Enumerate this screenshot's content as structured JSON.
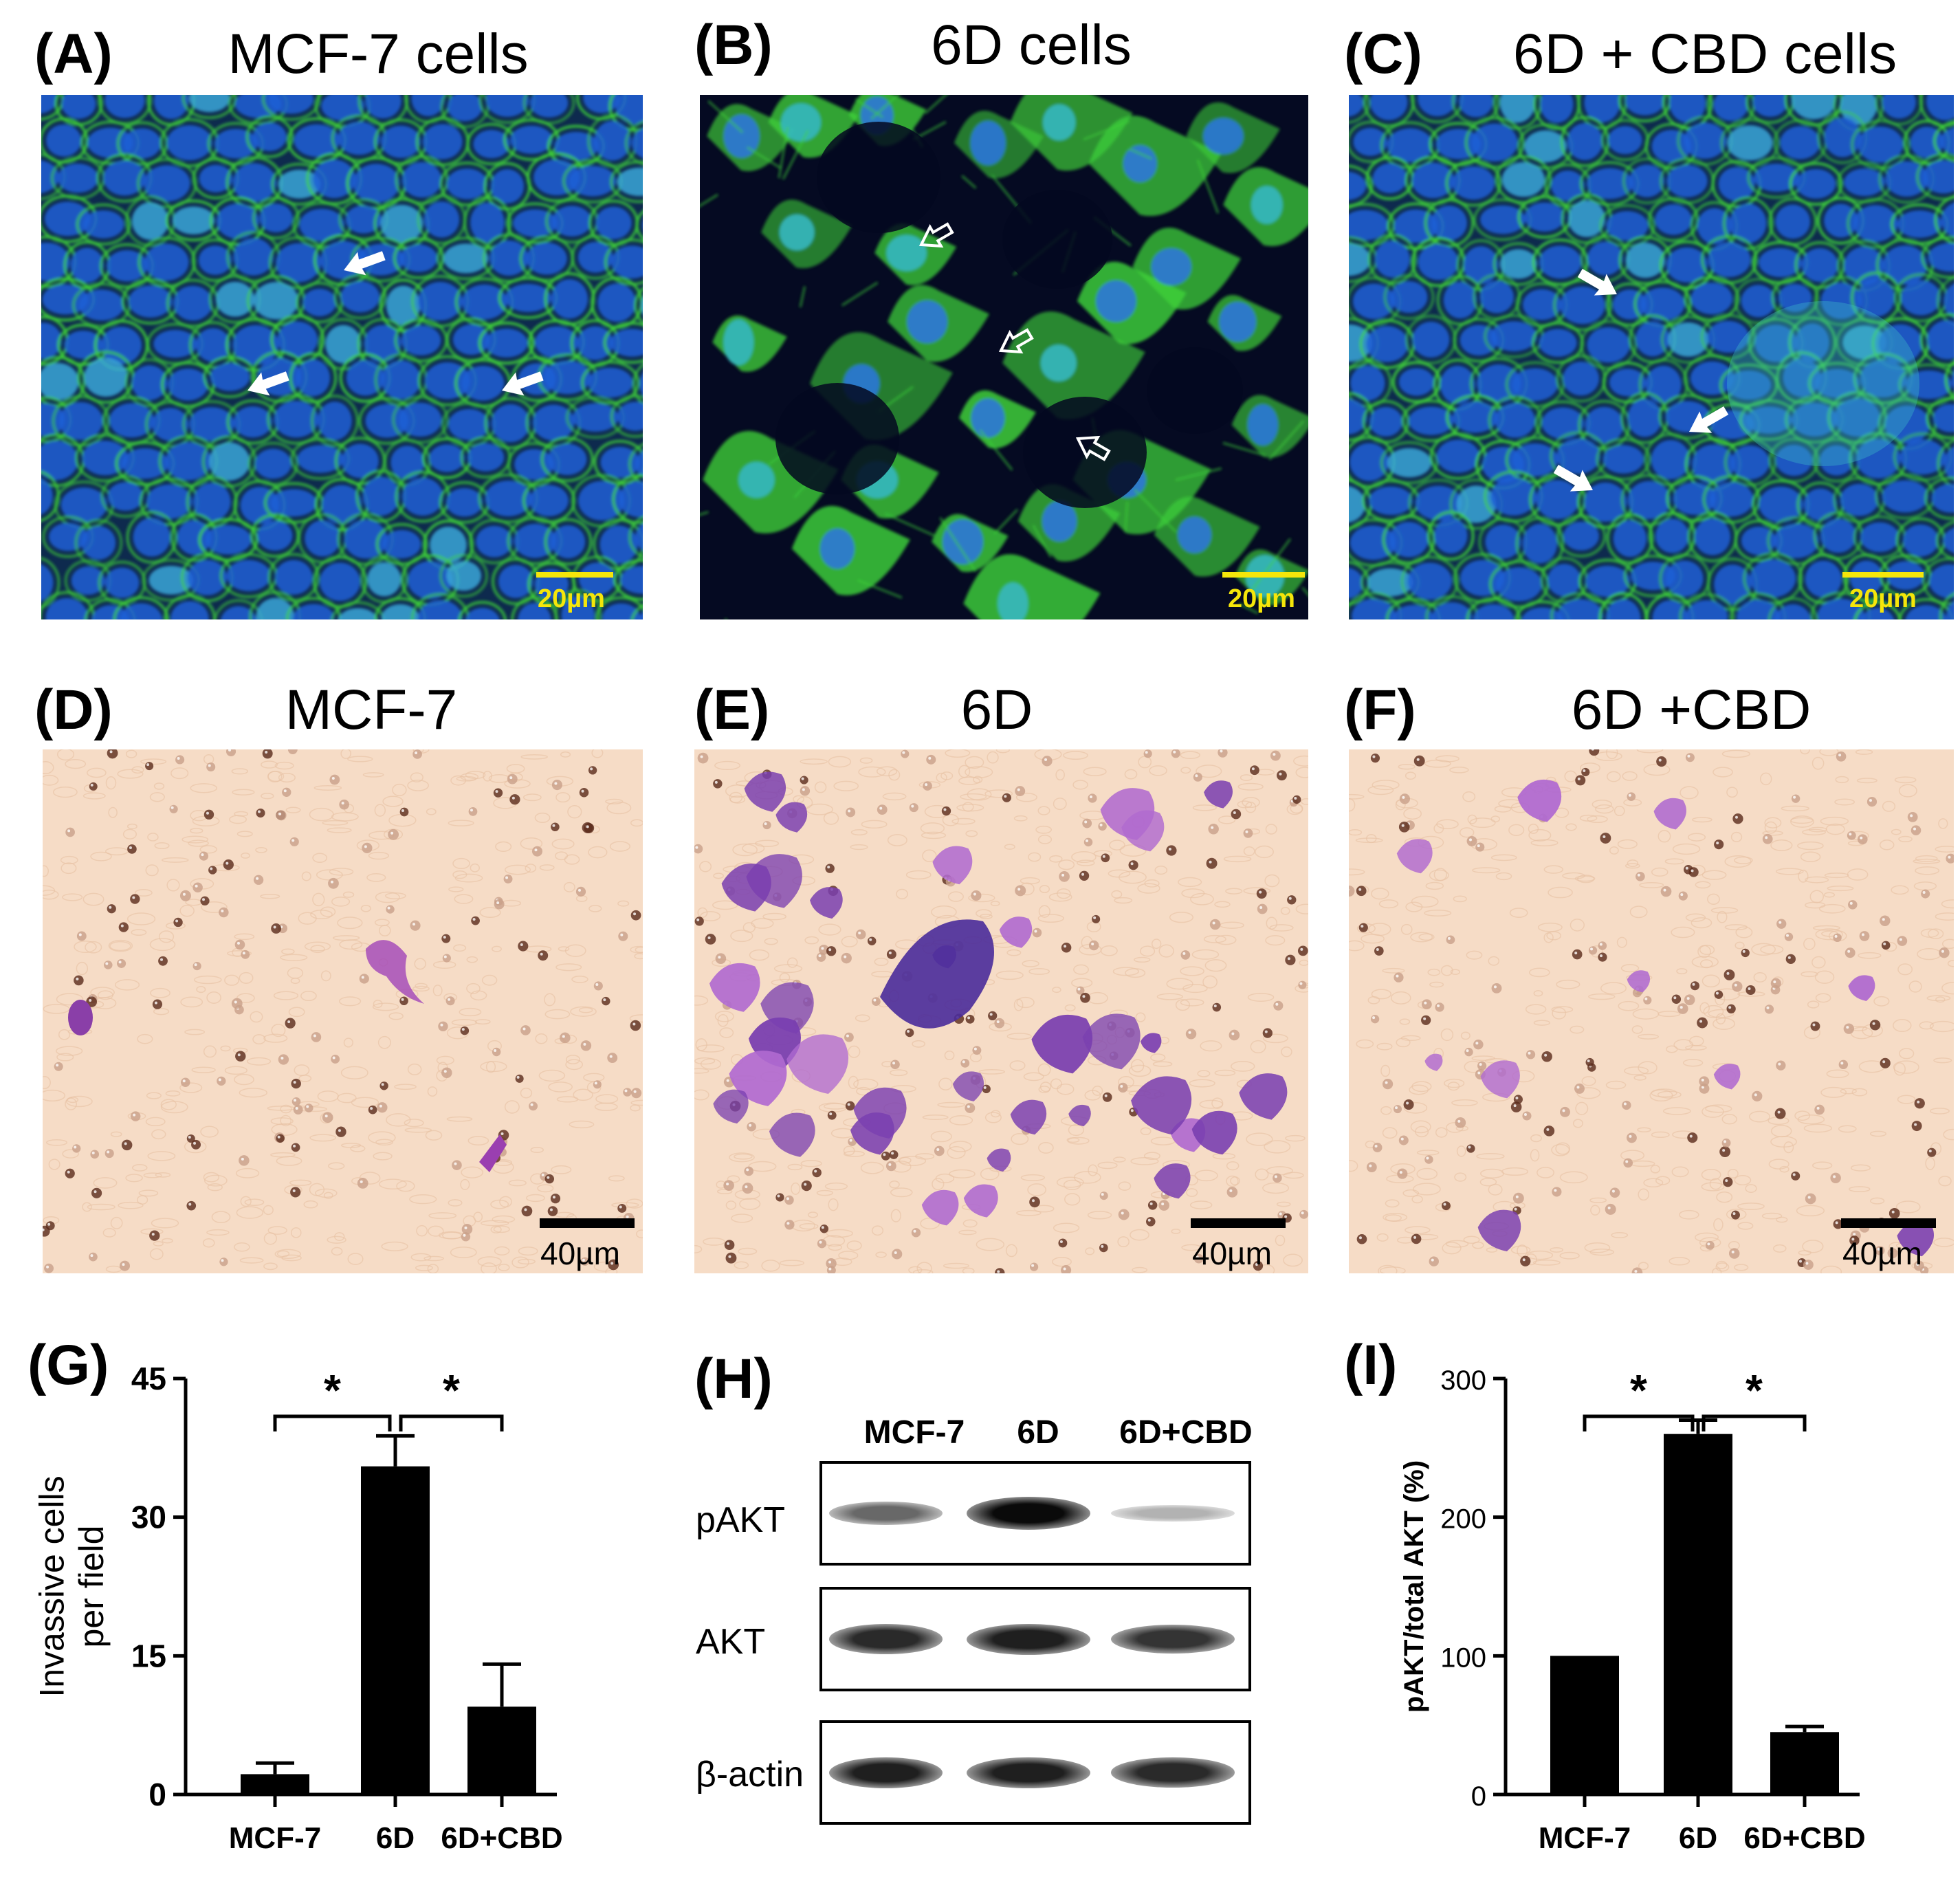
{
  "labels": {
    "A": "(A)",
    "B": "(B)",
    "C": "(C)",
    "D": "(D)",
    "E": "(E)",
    "F": "(F)",
    "G": "(G)",
    "H": "(H)",
    "I": "(I)"
  },
  "titles": {
    "A": "MCF-7 cells",
    "B": "6D cells",
    "C": "6D + CBD cells",
    "D": "MCF-7",
    "E": "6D",
    "F": "6D +CBD"
  },
  "scale": {
    "fluor": "20µm",
    "bright": "40µm"
  },
  "colors": {
    "fluor_bg": "#0b1a3a",
    "nucleus": "#1f5fd6",
    "membrane": "#3fd23a",
    "bright_bg": "#f6dcc6",
    "stain": "#7a3fb0",
    "scale_yellow": "#f5e60a",
    "bar": "#000000"
  },
  "blot": {
    "columns": [
      "MCF-7",
      "6D",
      "6D+CBD"
    ],
    "rows": [
      "pAKT",
      "AKT",
      "β-actin"
    ],
    "intensity": {
      "pAKT": [
        0.55,
        1.0,
        0.2
      ],
      "AKT": [
        0.85,
        0.9,
        0.8
      ],
      "β-actin": [
        0.9,
        0.9,
        0.85
      ]
    }
  },
  "chart_data": [
    {
      "type": "bar",
      "panel": "G",
      "categories": [
        "MCF-7",
        "6D",
        "6D+CBD"
      ],
      "values": [
        2.2,
        35.5,
        9.5
      ],
      "errors": [
        1.2,
        3.3,
        4.6
      ],
      "ylabel": "Invassive cells\nper field",
      "ylim": [
        0,
        45
      ],
      "yticks": [
        "0",
        "15",
        "30",
        "45"
      ],
      "significance": [
        {
          "from": 0,
          "to": 1,
          "label": "*"
        },
        {
          "from": 1,
          "to": 2,
          "label": "*"
        }
      ]
    },
    {
      "type": "bar",
      "panel": "I",
      "categories": [
        "MCF-7",
        "6D",
        "6D+CBD"
      ],
      "values": [
        100,
        260,
        45
      ],
      "errors": [
        0,
        10,
        4
      ],
      "ylabel": "pAKT/total AKT (%)",
      "ylim": [
        0,
        300
      ],
      "yticks": [
        "0",
        "100",
        "200",
        "300"
      ],
      "significance": [
        {
          "from": 0,
          "to": 1,
          "label": "*"
        },
        {
          "from": 1,
          "to": 2,
          "label": "*"
        }
      ]
    }
  ]
}
